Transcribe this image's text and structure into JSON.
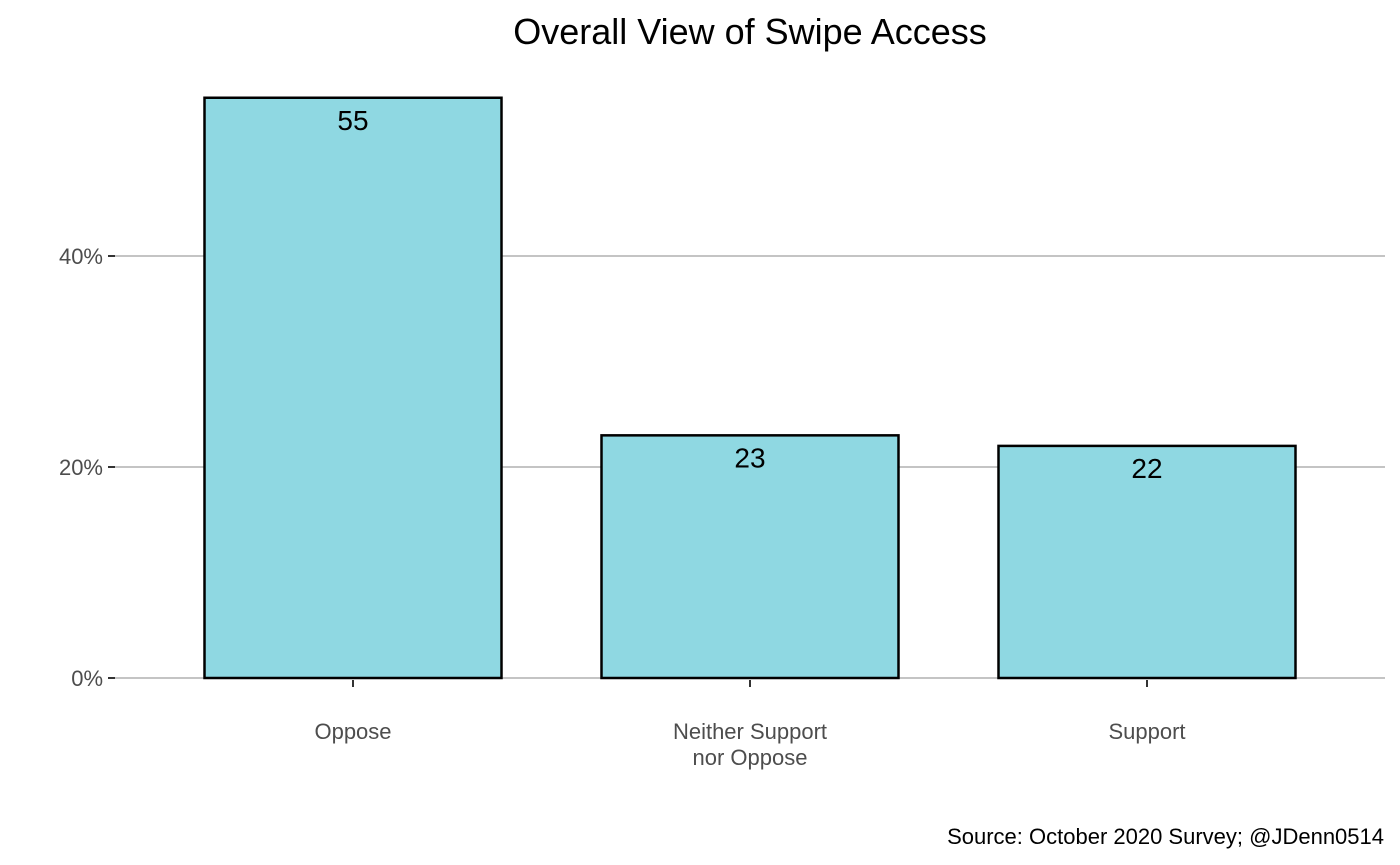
{
  "chart_data": {
    "type": "bar",
    "title": "Overall View of Swipe Access",
    "categories": [
      "Oppose",
      "Neither Support nor Oppose",
      "Support"
    ],
    "category_label_lines": [
      [
        "Oppose"
      ],
      [
        "Neither Support",
        "nor Oppose"
      ],
      [
        "Support"
      ]
    ],
    "values": [
      55,
      23,
      22
    ],
    "value_labels": [
      "55",
      "23",
      "22"
    ],
    "xlabel": "",
    "ylabel": "",
    "ylim": [
      0,
      60
    ],
    "yticks": [
      0,
      20,
      40
    ],
    "ytick_labels": [
      "0%",
      "20%",
      "40%"
    ],
    "grid": {
      "horizontal": true,
      "vertical": false
    },
    "bar_fill": "#8fd8e2",
    "bar_stroke": "#000000",
    "gridline_color": "#c4c4c4",
    "caption": "Source: October 2020 Survey; @JDenn0514"
  }
}
